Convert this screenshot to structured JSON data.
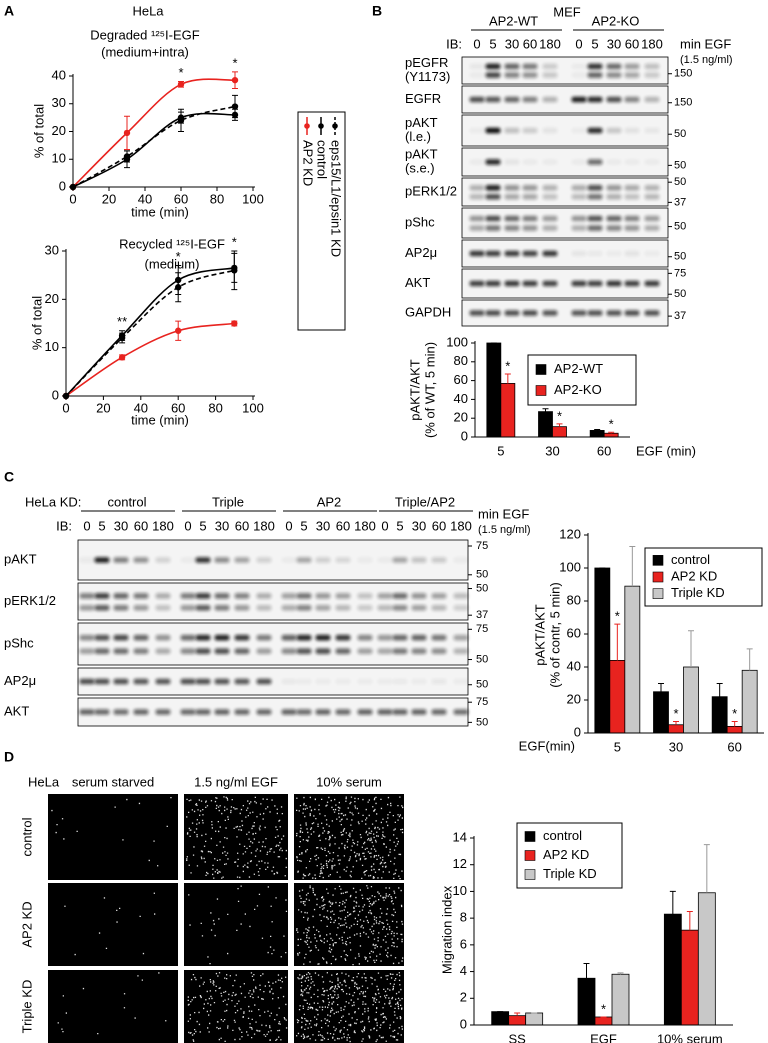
{
  "figure": {
    "panel_letters": [
      "A",
      "B",
      "C",
      "D"
    ],
    "panel_a": {
      "cell_line": "HeLa"
    },
    "panel_b": {
      "cell_line": "MEF",
      "ib": "IB:",
      "treatment": [
        "min EGF",
        "(1.5 ng/ml)"
      ],
      "groups": [
        {
          "label": "AP2-WT",
          "lanes": [
            "0",
            "5",
            "30",
            "60",
            "180"
          ]
        },
        {
          "label": "AP2-KO",
          "lanes": [
            "0",
            "5",
            "30",
            "60",
            "180"
          ]
        }
      ],
      "rows": [
        {
          "label": [
            "pEGFR",
            "(Y1173)"
          ],
          "mw": [
            "150"
          ]
        },
        {
          "label": [
            "EGFR"
          ],
          "mw": [
            "150"
          ]
        },
        {
          "label": [
            "pAKT",
            "(l.e.)"
          ],
          "mw": [
            "50"
          ]
        },
        {
          "label": [
            "pAKT",
            "(s.e.)"
          ],
          "mw": [
            "50"
          ]
        },
        {
          "label": [
            "pERK1/2"
          ],
          "mw": [
            "50",
            "37"
          ]
        },
        {
          "label": [
            "pShc"
          ],
          "mw": [
            "50"
          ]
        },
        {
          "label": [
            "AP2μ"
          ],
          "mw": [
            "50"
          ]
        },
        {
          "label": [
            "AKT"
          ],
          "mw": [
            "75",
            "50"
          ]
        },
        {
          "label": [
            "GAPDH"
          ],
          "mw": [
            "37"
          ]
        }
      ]
    },
    "panel_c": {
      "prefix": "HeLa KD:",
      "ib": "IB:",
      "treatment": [
        "min EGF",
        "(1.5 ng/ml)"
      ],
      "groups": [
        {
          "label": "control",
          "lanes": [
            "0",
            "5",
            "30",
            "60",
            "180"
          ]
        },
        {
          "label": "Triple",
          "lanes": [
            "0",
            "5",
            "30",
            "60",
            "180"
          ]
        },
        {
          "label": "AP2",
          "lanes": [
            "0",
            "5",
            "30",
            "60",
            "180"
          ]
        },
        {
          "label": "Triple/AP2",
          "lanes": [
            "0",
            "5",
            "30",
            "60",
            "180"
          ]
        }
      ],
      "rows": [
        {
          "label": [
            "pAKT"
          ],
          "mw": [
            "75",
            "50"
          ]
        },
        {
          "label": [
            "pERK1/2"
          ],
          "mw": [
            "50",
            "37"
          ]
        },
        {
          "label": [
            "pShc"
          ],
          "mw": [
            "75",
            "50"
          ]
        },
        {
          "label": [
            "AP2μ"
          ],
          "mw": [
            "50"
          ]
        },
        {
          "label": [
            "AKT"
          ],
          "mw": [
            "75",
            "50"
          ]
        }
      ]
    },
    "panel_d": {
      "cell_line": "HeLa",
      "columns": [
        "serum starved",
        "1.5 ng/ml EGF",
        "10% serum"
      ],
      "rows": [
        "control",
        "AP2 KD",
        "Triple KD"
      ]
    }
  },
  "chart_data": [
    {
      "type": "line",
      "title": "Degraded ¹²⁵I-EGF",
      "subtitle": "(medium+intra)",
      "xlabel": "time (min)",
      "ylabel": "% of total",
      "x": [
        0,
        30,
        60,
        90
      ],
      "xlim": [
        0,
        100
      ],
      "xticks": [
        0,
        20,
        40,
        60,
        80,
        100
      ],
      "ylim": [
        0,
        40
      ],
      "yticks": [
        0,
        10,
        20,
        30,
        40
      ],
      "series": [
        {
          "name": "control",
          "color": "#000000",
          "values": [
            0,
            10,
            25,
            26
          ],
          "errors": [
            0,
            3,
            2,
            2
          ]
        },
        {
          "name": "AP2 KD",
          "color": "#e8231f",
          "values": [
            0,
            19.5,
            37,
            38.5
          ],
          "errors": [
            0,
            6,
            1,
            3
          ]
        },
        {
          "name": "eps15/L1/epsin1 KD",
          "color": "#000000",
          "dash": true,
          "values": [
            0,
            11,
            24,
            29
          ],
          "errors": [
            0,
            2,
            4,
            4
          ]
        }
      ],
      "annotations": [
        null,
        null,
        "*",
        "*"
      ]
    },
    {
      "type": "line",
      "title": "Recycled ¹²⁵I-EGF",
      "subtitle": "(medium)",
      "xlabel": "time (min)",
      "ylabel": "% of total",
      "x": [
        0,
        30,
        60,
        90
      ],
      "xlim": [
        0,
        100
      ],
      "xticks": [
        0,
        20,
        40,
        60,
        80,
        100
      ],
      "ylim": [
        0,
        30
      ],
      "yticks": [
        0,
        10,
        20,
        30
      ],
      "series": [
        {
          "color": "#000000",
          "values": [
            0,
            12.5,
            24,
            26.5
          ],
          "errors": [
            0,
            1,
            3,
            3
          ]
        },
        {
          "color": "#e8231f",
          "values": [
            0,
            8,
            13.5,
            15
          ],
          "errors": [
            0,
            0.5,
            2,
            0.5
          ]
        },
        {
          "color": "#000000",
          "dash": true,
          "values": [
            0,
            12,
            22.5,
            26
          ],
          "errors": [
            0,
            1,
            3,
            4
          ]
        }
      ],
      "annotations": [
        null,
        "**",
        "*",
        "*"
      ]
    },
    {
      "type": "bar",
      "ylabel": [
        "pAKT/AKT",
        "(% of WT, 5 min)"
      ],
      "xlabel": "EGF (min)",
      "categories": [
        "5",
        "30",
        "60"
      ],
      "ylim": [
        0,
        100
      ],
      "yticks": [
        0,
        20,
        40,
        60,
        80,
        100
      ],
      "legend": true,
      "series": [
        {
          "name": "AP2-WT",
          "color": "#000000",
          "values": [
            100,
            27,
            7
          ],
          "errors": [
            0,
            3,
            1
          ]
        },
        {
          "name": "AP2-KO",
          "color": "#e8231f",
          "values": [
            57,
            11,
            4
          ],
          "errors": [
            10,
            3,
            1
          ],
          "annotations": [
            "*",
            "*",
            "*"
          ]
        }
      ]
    },
    {
      "type": "bar",
      "ylabel": [
        "pAKT/AKT",
        "(% of contr, 5 min)"
      ],
      "xlabel": "EGF(min)",
      "categories": [
        "5",
        "30",
        "60"
      ],
      "ylim": [
        0,
        120
      ],
      "yticks": [
        0,
        20,
        40,
        60,
        80,
        100,
        120
      ],
      "legend": true,
      "series": [
        {
          "name": "control",
          "color": "#000000",
          "values": [
            100,
            25,
            22
          ],
          "errors": [
            0,
            5,
            8
          ]
        },
        {
          "name": "AP2 KD",
          "color": "#e8231f",
          "values": [
            44,
            5,
            4
          ],
          "errors": [
            22,
            2,
            3
          ],
          "annotations": [
            "*",
            "*",
            "*"
          ]
        },
        {
          "name": "Triple KD",
          "color": "#c8c8c8",
          "values": [
            89,
            40,
            38
          ],
          "errors": [
            24,
            22,
            13
          ]
        }
      ]
    },
    {
      "type": "bar",
      "ylabel": "Migration index",
      "categories": [
        "SS",
        "EGF",
        "10% serum"
      ],
      "ylim": [
        0,
        14
      ],
      "yticks": [
        0,
        2,
        4,
        6,
        8,
        10,
        12,
        14
      ],
      "legend": true,
      "series": [
        {
          "name": "control",
          "color": "#000000",
          "values": [
            1,
            3.5,
            8.3
          ],
          "errors": [
            0,
            1.1,
            1.7
          ]
        },
        {
          "name": "AP2 KD",
          "color": "#e8231f",
          "values": [
            0.7,
            0.6,
            7.1
          ],
          "errors": [
            0.2,
            0,
            1.4
          ],
          "annotations": [
            null,
            "*",
            null
          ]
        },
        {
          "name": "Triple KD",
          "color": "#c8c8c8",
          "values": [
            0.9,
            3.8,
            9.9
          ],
          "errors": [
            0,
            0.1,
            3.6
          ]
        }
      ]
    }
  ]
}
